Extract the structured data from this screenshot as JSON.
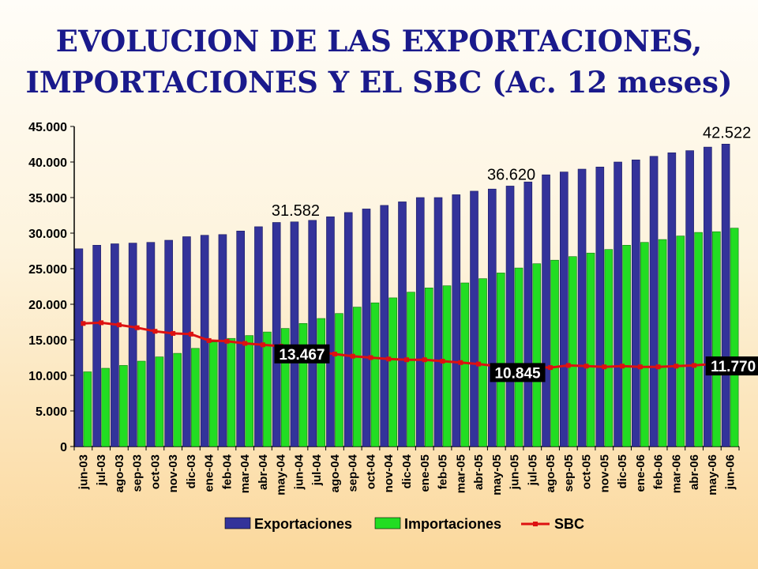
{
  "page": {
    "title_line1": "EVOLUCION DE LAS EXPORTACIONES,",
    "title_line2": "IMPORTACIONES Y EL SBC (Ac. 12 meses)"
  },
  "chart_data": {
    "type": "bar",
    "title": "EVOLUCION DE LAS EXPORTACIONES, IMPORTACIONES Y EL SBC (Ac. 12 meses)",
    "categories": [
      "jun-03",
      "jul-03",
      "ago-03",
      "sep-03",
      "oct-03",
      "nov-03",
      "dic-03",
      "ene-04",
      "feb-04",
      "mar-04",
      "abr-04",
      "may-04",
      "jun-04",
      "jul-04",
      "ago-04",
      "sep-04",
      "oct-04",
      "nov-04",
      "dic-04",
      "ene-05",
      "feb-05",
      "mar-05",
      "abr-05",
      "may-05",
      "jun-05",
      "jul-05",
      "ago-05",
      "sep-05",
      "oct-05",
      "nov-05",
      "dic-05",
      "ene-06",
      "feb-06",
      "mar-06",
      "abr-06",
      "may-06",
      "jun-06"
    ],
    "series": [
      {
        "name": "Exportaciones",
        "kind": "bar",
        "color": "#33339a",
        "values": [
          27800,
          28300,
          28500,
          28600,
          28700,
          29000,
          29500,
          29700,
          29800,
          30300,
          30900,
          31500,
          31582,
          31800,
          32300,
          32900,
          33400,
          33900,
          34400,
          35000,
          35000,
          35400,
          35900,
          36200,
          36620,
          37200,
          38200,
          38600,
          39000,
          39300,
          40000,
          40300,
          40800,
          41300,
          41600,
          42100,
          42522
        ]
      },
      {
        "name": "Importaciones",
        "kind": "bar",
        "color": "#22dd22",
        "values": [
          10500,
          11000,
          11400,
          12000,
          12600,
          13100,
          13800,
          14700,
          15200,
          15600,
          16100,
          16600,
          17300,
          18000,
          18700,
          19600,
          20200,
          20900,
          21700,
          22300,
          22600,
          23000,
          23600,
          24400,
          25100,
          25700,
          26200,
          26700,
          27200,
          27700,
          28300,
          28700,
          29100,
          29600,
          30100,
          30200,
          30700
        ]
      },
      {
        "name": "SBC",
        "kind": "line",
        "color": "#dd1111",
        "values": [
          17300,
          17400,
          17100,
          16700,
          16200,
          15900,
          15800,
          14900,
          14800,
          14500,
          14300,
          14100,
          13467,
          13300,
          13000,
          12700,
          12500,
          12300,
          12200,
          12200,
          12000,
          11800,
          11600,
          11300,
          10845,
          11200,
          11100,
          11400,
          11300,
          11200,
          11300,
          11200,
          11200,
          11300,
          11400,
          11600,
          11770
        ]
      }
    ],
    "data_labels": [
      {
        "series": "Exportaciones",
        "category": "jun-04",
        "text": "31.582"
      },
      {
        "series": "Exportaciones",
        "category": "jun-05",
        "text": "36.620"
      },
      {
        "series": "Exportaciones",
        "category": "jun-06",
        "text": "42.522"
      },
      {
        "series": "SBC",
        "category": "jun-04",
        "text": "13.467"
      },
      {
        "series": "SBC",
        "category": "jun-05",
        "text": "10.845"
      },
      {
        "series": "SBC",
        "category": "jun-06",
        "text": "11.770"
      }
    ],
    "yticks": [
      "0",
      "5.000",
      "10.000",
      "15.000",
      "20.000",
      "25.000",
      "30.000",
      "35.000",
      "40.000",
      "45.000"
    ],
    "ylim": [
      0,
      45000
    ],
    "ytick_step": 5000,
    "grid": false,
    "legend": "bottom",
    "xlabel": "",
    "ylabel": ""
  }
}
